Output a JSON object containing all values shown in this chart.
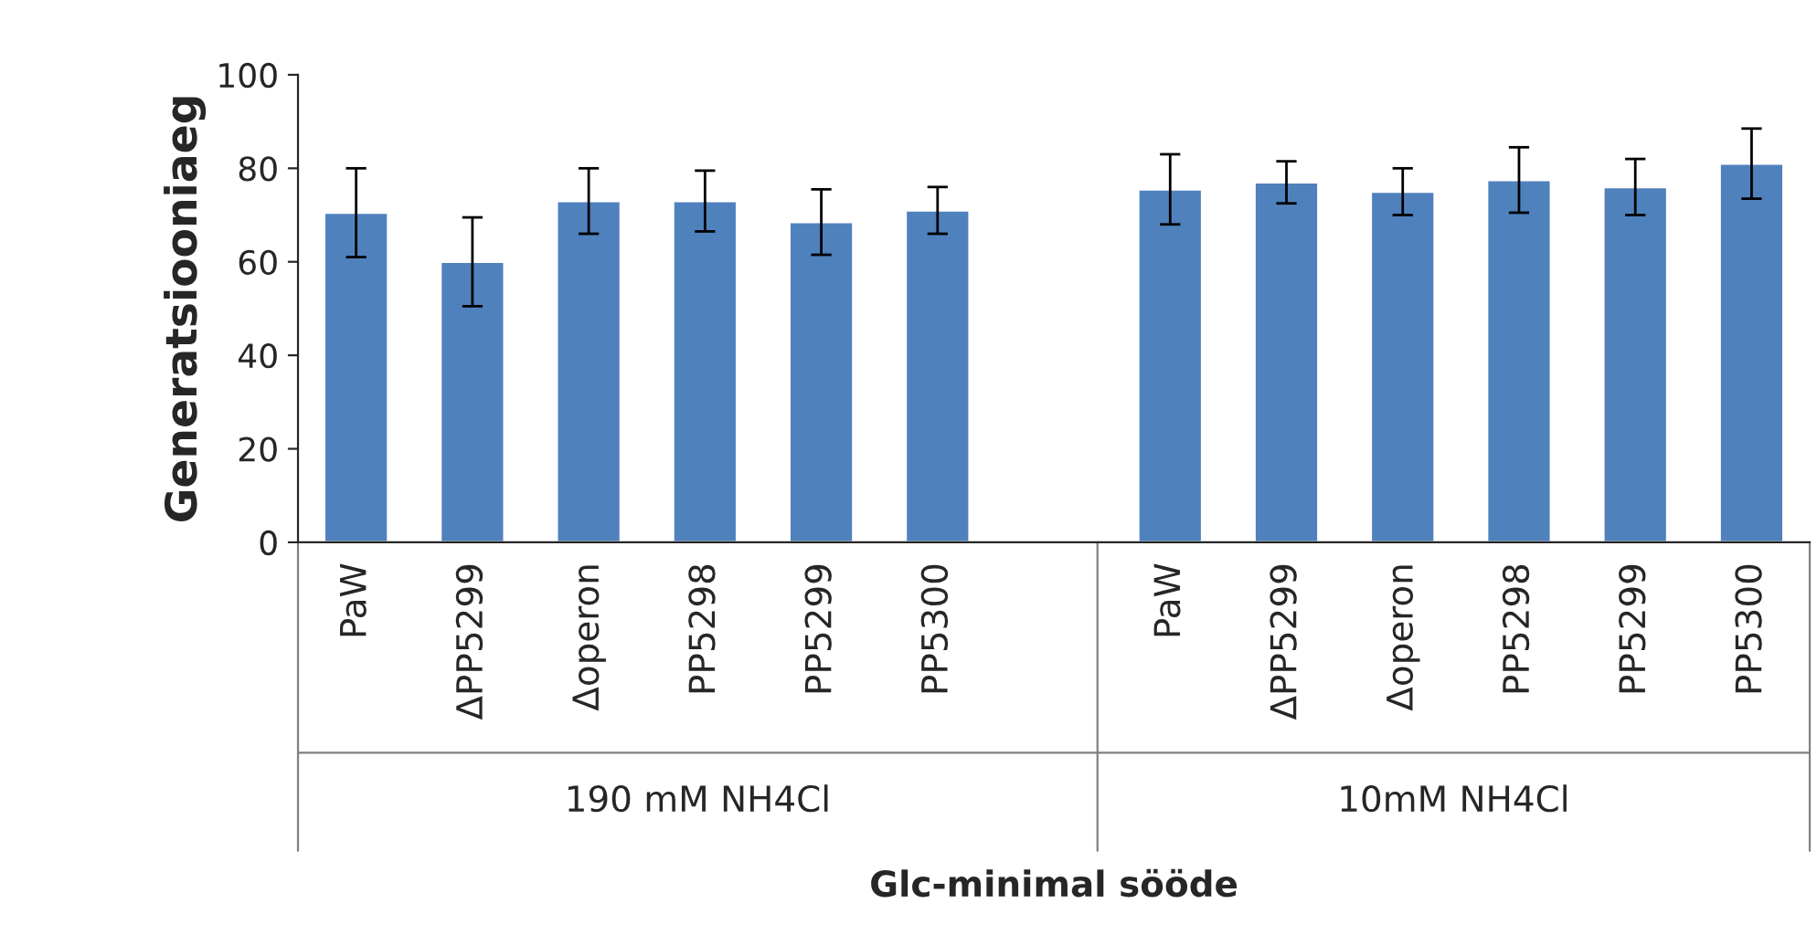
{
  "chart_data": {
    "type": "bar",
    "xlabel": "Glc-minimal sööde",
    "ylabel": "Generatsiooniaeg",
    "categories": [
      "PaW",
      "ΔPP5299",
      "Δoperon",
      "PP5298",
      "PP5299",
      "PP5300",
      null,
      "PaW",
      "ΔPP5299",
      "Δoperon",
      "PP5298",
      "PP5299",
      "PP5300"
    ],
    "series": [
      {
        "color": "#4f81bd",
        "values": [
          70.5,
          60,
          73,
          73,
          68.5,
          71,
          null,
          75.5,
          77,
          75,
          77.5,
          76,
          81
        ],
        "errors": [
          9.5,
          9.5,
          7,
          6.5,
          7,
          5,
          null,
          7.5,
          4.5,
          5,
          7,
          6,
          7.5
        ]
      }
    ],
    "annotations": [
      "190 mM NH4Cl",
      "10mM NH4Cl"
    ],
    "ylim": [
      0,
      100
    ],
    "yticks": [
      0,
      20,
      40,
      60,
      80,
      100
    ],
    "grid": false,
    "legend": false
  }
}
